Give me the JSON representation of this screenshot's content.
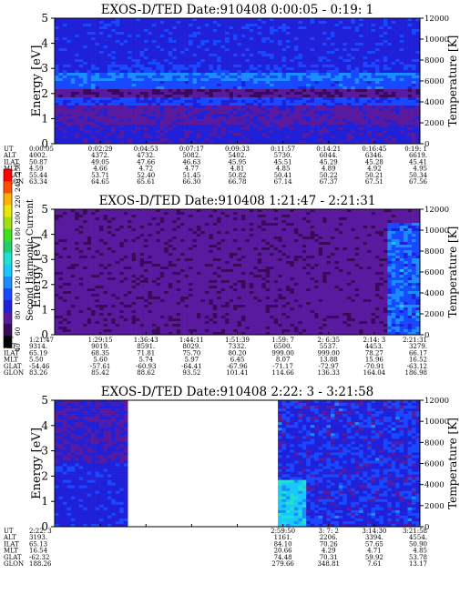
{
  "colorbar": {
    "title": "Second Harmonic Current",
    "ticks": [
      "40",
      "60",
      "80",
      "100",
      "120",
      "140",
      "160",
      "180",
      "200",
      "220",
      "240",
      "250"
    ],
    "colors": [
      "#000000",
      "#3a0a5a",
      "#5a1aa0",
      "#2020d8",
      "#1848ff",
      "#1a8cff",
      "#18c8ff",
      "#20e0d0",
      "#20d070",
      "#40e020",
      "#a0e010",
      "#e8e800",
      "#ffb000",
      "#ff5000",
      "#ff0000"
    ]
  },
  "chart_data": [
    {
      "type": "heatmap",
      "title": "EXOS-D/TED   Date:910408   0:00:05 - 0:19: 1",
      "ylabel": "Energy [eV]",
      "y2label": "Temperature [K]",
      "ylim": [
        0,
        5
      ],
      "y2lim": [
        0,
        12000
      ],
      "y_ticks": [
        "0",
        "1",
        "2",
        "3",
        "4",
        "5"
      ],
      "y2_ticks": [
        "0",
        "2000",
        "4000",
        "6000",
        "8000",
        "10000",
        "12000"
      ],
      "data_gap": [],
      "base_level": 0.22,
      "bands": [
        [
          0,
          0.8,
          0.22
        ],
        [
          0.8,
          1.5,
          0.18
        ],
        [
          1.5,
          1.9,
          0.28
        ],
        [
          1.9,
          2.2,
          0.14
        ],
        [
          2.2,
          2.5,
          0.3
        ],
        [
          2.5,
          2.8,
          0.34
        ],
        [
          2.8,
          3.1,
          0.26
        ],
        [
          3.1,
          5,
          0.24
        ]
      ],
      "row_labels": [
        "UT",
        "ALT",
        "ILAT",
        "MLT",
        "GLAT",
        "GLON"
      ],
      "columns": [
        [
          "0:00:05",
          "4002.",
          "50.87",
          "4.59",
          "55.44",
          "63.34"
        ],
        [
          "0:02:29",
          "4372.",
          "49.05",
          "4.66",
          "53.71",
          "64.65"
        ],
        [
          "0:04:53",
          "4732.",
          "47.66",
          "4.72",
          "52.40",
          "65.61"
        ],
        [
          "0:07:17",
          "5082.",
          "46.63",
          "4.77",
          "51.45",
          "66.30"
        ],
        [
          "0:09:33",
          "5402.",
          "45.95",
          "4.81",
          "50.82",
          "66.78"
        ],
        [
          "0:11:57",
          "5730.",
          "45.51",
          "4.85",
          "50.41",
          "67.14"
        ],
        [
          "0:14:21",
          "6044.",
          "45.29",
          "4.89",
          "50.22",
          "67.37"
        ],
        [
          "0:16:45",
          "6346.",
          "45.28",
          "4.92",
          "50.21",
          "67.51"
        ],
        [
          "0:19: 1",
          "6619.",
          "45.41",
          "4.95",
          "50.34",
          "67.56"
        ]
      ]
    },
    {
      "type": "heatmap",
      "title": "EXOS-D/TED   Date:910408   1:21:47 - 2:21:31",
      "ylabel": "Energy [eV]",
      "y2label": "Temperature [K]",
      "ylim": [
        0,
        5
      ],
      "y2lim": [
        0,
        12000
      ],
      "y_ticks": [
        "0",
        "1",
        "2",
        "3",
        "4",
        "5"
      ],
      "y2_ticks": [
        "0",
        "2000",
        "4000",
        "6000",
        "8000",
        "10000",
        "12000"
      ],
      "data_gap": [],
      "base_level": 0.16,
      "bands": [],
      "row_labels": [
        "UT",
        "ALT",
        "ILAT",
        "MLT",
        "GLAT",
        "GLON"
      ],
      "columns": [
        [
          "1:21:47",
          "9314.",
          "65.19",
          "5.50",
          "-54.46",
          "83.26"
        ],
        [
          "1:29:15",
          "9019.",
          "68.35",
          "5.60",
          "-57.61",
          "85.42"
        ],
        [
          "1:36:43",
          "8591.",
          "71.81",
          "5.74",
          "-60.93",
          "88.62"
        ],
        [
          "1:44:11",
          "8029.",
          "75.70",
          "5.97",
          "-64.41",
          "93.52"
        ],
        [
          "1:51:39",
          "7332.",
          "80.20",
          "6.45",
          "-67.96",
          "101.41"
        ],
        [
          "1:59: 7",
          "6500.",
          "999.00",
          "8.07",
          "-71.17",
          "114.66"
        ],
        [
          "2: 6:35",
          "5537.",
          "999.00",
          "13.88",
          "-72.97",
          "136.33"
        ],
        [
          "2:14: 3",
          "4453.",
          "78.27",
          "15.96",
          "-70.91",
          "164.04"
        ],
        [
          "2:21:31",
          "3279.",
          "66.17",
          "16.52",
          "-63.12",
          "186.98"
        ]
      ]
    },
    {
      "type": "heatmap",
      "title": "EXOS-D/TED   Date:910408   2:22: 3 - 3:21:58",
      "ylabel": "Energy [eV]",
      "y2label": "Temperature [K]",
      "ylim": [
        0,
        5
      ],
      "y2lim": [
        0,
        12000
      ],
      "y_ticks": [
        "0",
        "1",
        "2",
        "3",
        "4",
        "5"
      ],
      "y2_ticks": [
        "0",
        "2000",
        "4000",
        "6000",
        "8000",
        "10000",
        "12000"
      ],
      "data_gap": [
        0.2,
        0.61
      ],
      "base_level": 0.24,
      "bands": [],
      "row_labels": [
        "UT",
        "ALT",
        "ILAT",
        "MLT",
        "GLAT",
        "GLON"
      ],
      "columns": [
        [
          "2:22: 3",
          "3193.",
          "65.13",
          "16.54",
          "-62.32",
          "188.26"
        ],
        [
          "",
          "",
          "",
          "",
          "",
          ""
        ],
        [
          "",
          "",
          "",
          "",
          "",
          ""
        ],
        [
          "",
          "",
          "",
          "",
          "",
          ""
        ],
        [
          "",
          "",
          "",
          "",
          "",
          ""
        ],
        [
          "2:59:50",
          "1161.",
          "84.10",
          "20.66",
          "74.48",
          "279.66"
        ],
        [
          "3: 7: 2",
          "2206.",
          "70.26",
          "4.29",
          "70.31",
          "348.81"
        ],
        [
          "3:14:30",
          "3394.",
          "57.65",
          "4.71",
          "59.92",
          "7.61"
        ],
        [
          "3:21:58",
          "4554.",
          "50.90",
          "4.85",
          "53.78",
          "13.17"
        ]
      ]
    }
  ]
}
